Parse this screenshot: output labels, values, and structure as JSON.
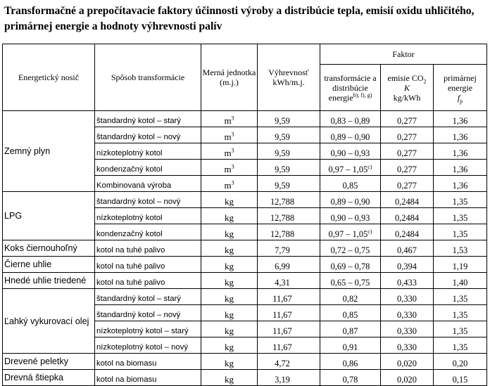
{
  "title": "Transformačné a prepočítavacie faktory účinnosti výroby a distribúcie tepla, emisií oxidu uhličitého, primárnej energie a hodnoty výhrevnosti palív",
  "headers": {
    "carrier": "Energetický nosič",
    "method": "Spôsob transformácie",
    "unit": "Merná jednotka (m.j.)",
    "calorific": "Výhrevnosť kWh/m.j.",
    "factor_group": "Faktor",
    "transformation": "transformácie a distribúcie energie",
    "transformation_sup": "b), f), g)",
    "co2_pre": "emisie CO",
    "co2_sub": "2",
    "co2_k": "K",
    "co2_unit": "kg/kWh",
    "primary_line1": "primárnej energie",
    "primary_fp": "f",
    "primary_fp_sub": "p"
  },
  "rows": [
    {
      "carrier": "Zemný plyn",
      "method": "štandardný kotol – starý",
      "unit": "m",
      "unit_sup": "3",
      "calorific": "9,59",
      "transformation": "0,83 – 0,89",
      "trans_sup": "",
      "co2": "0,277",
      "primary": "1,36"
    },
    {
      "carrier": "",
      "method": "štandardný kotol – nový",
      "unit": "m",
      "unit_sup": "3",
      "calorific": "9,59",
      "transformation": "0,89 – 0,90",
      "trans_sup": "",
      "co2": "0,277",
      "primary": "1,36"
    },
    {
      "carrier": "",
      "method": "nízkoteplotný kotol",
      "unit": "m",
      "unit_sup": "3",
      "calorific": "9,59",
      "transformation": "0,90 – 0,93",
      "trans_sup": "",
      "co2": "0,277",
      "primary": "1,36"
    },
    {
      "carrier": "",
      "method": "kondenzačný kotol",
      "unit": "m",
      "unit_sup": "3",
      "calorific": "9,59",
      "transformation": "0,97 – 1,05",
      "trans_sup": "c)",
      "co2": "0,277",
      "primary": "1,36"
    },
    {
      "carrier": "",
      "method": "Kombinovaná výroba",
      "unit": "m",
      "unit_sup": "3",
      "calorific": "9,59",
      "transformation": "0,85",
      "trans_sup": "",
      "co2": "0,277",
      "primary": "1,36"
    },
    {
      "carrier": "LPG",
      "method": "štandardný kotol – nový",
      "unit": "kg",
      "unit_sup": "",
      "calorific": "12,788",
      "transformation": "0,89 – 0,90",
      "trans_sup": "",
      "co2": "0,2484",
      "primary": "1,35"
    },
    {
      "carrier": "",
      "method": "nízkoteplotný kotol",
      "unit": "kg",
      "unit_sup": "",
      "calorific": "12,788",
      "transformation": "0,90 – 0,93",
      "trans_sup": "",
      "co2": "0,2484",
      "primary": "1,35"
    },
    {
      "carrier": "",
      "method": "kondenzačný kotol",
      "unit": "kg",
      "unit_sup": "",
      "calorific": "12,788",
      "transformation": "0,97 – 1,05",
      "trans_sup": "c)",
      "co2": "0,2484",
      "primary": "1,35"
    },
    {
      "carrier": "Koks čiernouhoľný",
      "method": "kotol na tuhé palivo",
      "unit": "kg",
      "unit_sup": "",
      "calorific": "7,79",
      "transformation": "0,72 – 0,75",
      "trans_sup": "",
      "co2": "0,467",
      "primary": "1,53"
    },
    {
      "carrier": "Čierne uhlie",
      "method": "kotol na tuhé palivo",
      "unit": "kg",
      "unit_sup": "",
      "calorific": "6,99",
      "transformation": "0,69 – 0,78",
      "trans_sup": "",
      "co2": "0,394",
      "primary": "1,19"
    },
    {
      "carrier": "Hnedé uhlie triedené",
      "method": "kotol na tuhé palivo",
      "unit": "kg",
      "unit_sup": "",
      "calorific": "4,31",
      "transformation": "0,65 – 0,75",
      "trans_sup": "",
      "co2": "0,433",
      "primary": "1,40"
    },
    {
      "carrier": "Ľahký vykurovací olej",
      "method": "štandardný kotol – starý",
      "unit": "kg",
      "unit_sup": "",
      "calorific": "11,67",
      "transformation": "0,82",
      "trans_sup": "",
      "co2": "0,330",
      "primary": "1,35"
    },
    {
      "carrier": "",
      "method": "štandardný kotol – nový",
      "unit": "kg",
      "unit_sup": "",
      "calorific": "11,67",
      "transformation": "0,85",
      "trans_sup": "",
      "co2": "0,330",
      "primary": "1,35"
    },
    {
      "carrier": "",
      "method": "nízkoteplotný kotol – starý",
      "unit": "kg",
      "unit_sup": "",
      "calorific": "11,67",
      "transformation": "0,87",
      "trans_sup": "",
      "co2": "0,330",
      "primary": "1,35"
    },
    {
      "carrier": "",
      "method": "nízkoteplotný kotol – nový",
      "unit": "kg",
      "unit_sup": "",
      "calorific": "11,67",
      "transformation": "0,91",
      "trans_sup": "",
      "co2": "0,330",
      "primary": "1,35"
    },
    {
      "carrier": "Drevené peletky",
      "method": "kotol na biomasu",
      "unit": "kg",
      "unit_sup": "",
      "calorific": "4,72",
      "transformation": "0,86",
      "trans_sup": "",
      "co2": "0,020",
      "primary": "0,20"
    },
    {
      "carrier": "Drevná štiepka",
      "method": "kotol na biomasu",
      "unit": "kg",
      "unit_sup": "",
      "calorific": "3,19",
      "transformation": "0,78",
      "trans_sup": "",
      "co2": "0,020",
      "primary": "0,15"
    }
  ]
}
